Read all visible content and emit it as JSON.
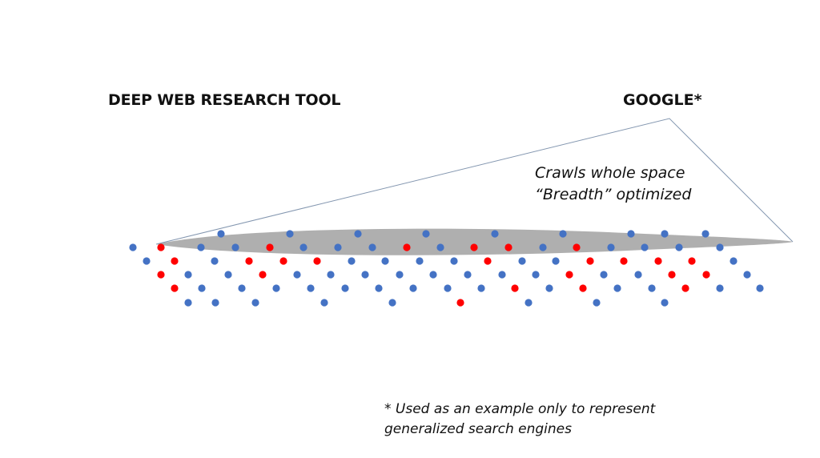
{
  "labels": {
    "left_title": "DEEP WEB RESEARCH TOOL",
    "right_title": "GOOGLE*",
    "annotation_line1": "Crawls whole space",
    "annotation_line2": "“Breadth” optimized",
    "footnote_line1": "* Used as an example only to represent",
    "footnote_line2": "generalized search engines"
  },
  "colors": {
    "blue_dot": "#4472c4",
    "red_dot": "#ff0000",
    "ellipse": "#a6a6a6",
    "triangle": "#8497b0"
  }
}
